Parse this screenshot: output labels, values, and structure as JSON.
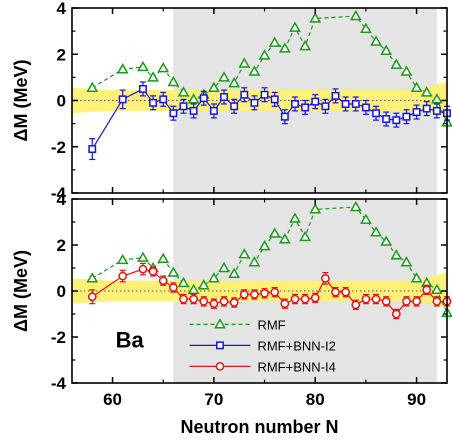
{
  "colors": {
    "rmf": "#1a9a1a",
    "i2": "#1414e0",
    "i4": "#e01414",
    "band": "#fff07a",
    "shade": "#e4e4e4"
  },
  "chart_data": [
    {
      "type": "scatter",
      "panel": "top",
      "ylabel": "ΔM (MeV)",
      "xlim": [
        56,
        93
      ],
      "ylim": [
        -4,
        4
      ],
      "yticks": [
        "-4",
        "-2",
        "0",
        "2",
        "4"
      ],
      "xticks": [],
      "shaded_region": [
        66,
        92
      ],
      "series": [
        {
          "name": "RMF",
          "style": "triangle-dashed",
          "x": [
            58,
            61,
            63,
            64,
            65,
            66,
            67,
            68,
            69,
            70,
            71,
            72,
            73,
            74,
            75,
            76,
            77,
            78,
            79,
            80,
            84,
            85,
            86,
            87,
            88,
            89,
            90,
            91,
            92,
            93
          ],
          "y": [
            0.55,
            1.35,
            1.45,
            1.0,
            1.4,
            0.8,
            0.35,
            0.05,
            0.25,
            0.55,
            1.0,
            0.75,
            1.6,
            1.25,
            1.95,
            2.5,
            2.25,
            3.15,
            2.35,
            3.55,
            3.65,
            3.1,
            2.55,
            2.15,
            1.55,
            1.25,
            0.55,
            0.35,
            0.05,
            -0.95
          ]
        },
        {
          "name": "RMF+BNN-I2",
          "style": "square-solid",
          "x": [
            58,
            61,
            63,
            64,
            65,
            66,
            67,
            68,
            69,
            70,
            71,
            72,
            73,
            74,
            75,
            76,
            77,
            78,
            79,
            80,
            81,
            82,
            83,
            84,
            85,
            86,
            87,
            88,
            89,
            90,
            91,
            92,
            93
          ],
          "y": [
            -2.1,
            0.05,
            0.5,
            -0.1,
            0.05,
            -0.55,
            -0.25,
            -0.45,
            0.1,
            -0.45,
            0.15,
            -0.25,
            0.25,
            -0.1,
            0.25,
            0.05,
            -0.7,
            -0.15,
            -0.3,
            -0.05,
            -0.25,
            0.2,
            -0.15,
            -0.15,
            -0.3,
            -0.55,
            -0.8,
            -0.85,
            -0.7,
            -0.5,
            -0.35,
            -0.45,
            -0.55
          ],
          "err": [
            0.45,
            0.4,
            0.3,
            0.3,
            0.3,
            0.3,
            0.3,
            0.3,
            0.3,
            0.3,
            0.3,
            0.3,
            0.3,
            0.3,
            0.3,
            0.3,
            0.3,
            0.3,
            0.3,
            0.3,
            0.3,
            0.3,
            0.3,
            0.3,
            0.3,
            0.3,
            0.3,
            0.3,
            0.3,
            0.3,
            0.3,
            0.3,
            0.3
          ]
        }
      ]
    },
    {
      "type": "scatter",
      "panel": "bottom",
      "xlabel": "Neutron number N",
      "ylabel": "ΔM (MeV)",
      "xlim": [
        56,
        93
      ],
      "ylim": [
        -4,
        4
      ],
      "yticks": [
        "-4",
        "-2",
        "0",
        "2",
        "4"
      ],
      "xticks": [
        "60",
        "70",
        "80",
        "90"
      ],
      "shaded_region": [
        66,
        92
      ],
      "annotation": "Ba",
      "legend": [
        "RMF",
        "RMF+BNN-I2",
        "RMF+BNN-I4"
      ],
      "series": [
        {
          "name": "RMF",
          "style": "triangle-dashed",
          "x": [
            58,
            61,
            63,
            64,
            65,
            66,
            67,
            68,
            69,
            70,
            71,
            72,
            73,
            74,
            75,
            76,
            77,
            78,
            79,
            80,
            84,
            85,
            86,
            87,
            88,
            89,
            90,
            91,
            92,
            93
          ],
          "y": [
            0.55,
            1.35,
            1.45,
            1.0,
            1.4,
            0.8,
            0.35,
            0.05,
            0.25,
            0.55,
            1.0,
            0.75,
            1.6,
            1.25,
            1.95,
            2.5,
            2.25,
            3.15,
            2.35,
            3.55,
            3.65,
            3.1,
            2.55,
            2.15,
            1.55,
            1.25,
            0.55,
            0.35,
            0.05,
            -0.95
          ]
        },
        {
          "name": "RMF+BNN-I4",
          "style": "circle-solid",
          "x": [
            58,
            61,
            63,
            64,
            65,
            66,
            67,
            68,
            69,
            70,
            71,
            72,
            73,
            74,
            75,
            76,
            77,
            78,
            79,
            80,
            81,
            82,
            83,
            84,
            85,
            86,
            87,
            88,
            89,
            90,
            91,
            92,
            93
          ],
          "y": [
            -0.25,
            0.65,
            0.95,
            0.85,
            0.45,
            0.15,
            -0.35,
            -0.35,
            -0.45,
            -0.55,
            -0.45,
            -0.5,
            -0.15,
            -0.15,
            -0.1,
            -0.05,
            -0.55,
            -0.35,
            -0.35,
            -0.3,
            0.55,
            -0.05,
            -0.05,
            -0.6,
            -0.35,
            -0.35,
            -0.45,
            -1.0,
            -0.45,
            -0.45,
            0.05,
            -0.45,
            -0.45
          ],
          "err": [
            0.3,
            0.25,
            0.25,
            0.2,
            0.2,
            0.2,
            0.2,
            0.2,
            0.2,
            0.2,
            0.2,
            0.2,
            0.2,
            0.2,
            0.2,
            0.2,
            0.2,
            0.2,
            0.2,
            0.2,
            0.25,
            0.2,
            0.2,
            0.2,
            0.2,
            0.2,
            0.2,
            0.2,
            0.2,
            0.2,
            0.2,
            0.2,
            0.2
          ]
        }
      ]
    }
  ]
}
